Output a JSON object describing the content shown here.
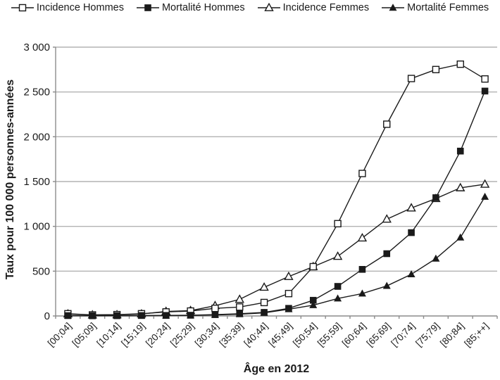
{
  "chart_data": {
    "type": "line",
    "title": "",
    "xlabel": "Âge en 2012",
    "ylabel": "Taux pour 100 000 personnes-années",
    "categories": [
      "[00;04]",
      "[05;09]",
      "[10;14]",
      "[15;19]",
      "[20;24]",
      "[25;29]",
      "[30;34]",
      "[35;39]",
      "[40;44]",
      "[45;49]",
      "[50;54]",
      "[55;59]",
      "[60;64]",
      "[65;69]",
      "[70;74]",
      "[75;79]",
      "[80;84]",
      "[85;++]"
    ],
    "series": [
      {
        "id": "incidence-hommes",
        "name": "Incidence Hommes",
        "marker": "square-open",
        "values": [
          25,
          12,
          15,
          25,
          45,
          55,
          85,
          100,
          150,
          250,
          550,
          1030,
          1590,
          2140,
          2650,
          2750,
          2810,
          2645
        ]
      },
      {
        "id": "mortalite-hommes",
        "name": "Mortalité Hommes",
        "marker": "square-filled",
        "values": [
          4,
          2,
          3,
          5,
          6,
          8,
          15,
          25,
          40,
          85,
          175,
          330,
          520,
          695,
          930,
          1320,
          1840,
          2510
        ]
      },
      {
        "id": "incidence-femmes",
        "name": "Incidence Femmes",
        "marker": "triangle-open",
        "values": [
          22,
          11,
          13,
          22,
          50,
          60,
          115,
          185,
          320,
          440,
          550,
          665,
          870,
          1080,
          1205,
          1310,
          1430,
          1470
        ]
      },
      {
        "id": "mortalite-femmes",
        "name": "Mortalité Femmes",
        "marker": "triangle-filled",
        "values": [
          3,
          2,
          2,
          4,
          5,
          6,
          12,
          20,
          35,
          75,
          120,
          195,
          250,
          335,
          465,
          640,
          875,
          1330
        ]
      }
    ],
    "ylim": [
      0,
      3000
    ],
    "ytick_step": 500,
    "ytick_labels": [
      "0",
      "500",
      "1 000",
      "1 500",
      "2 000",
      "2 500",
      "3 000"
    ],
    "grid": "horizontal",
    "legend_position": "top",
    "colors": {
      "series": "#1a1a1a",
      "marker_fill_open": "#ffffff",
      "grid": "#b3b3b3",
      "axis": "#8c8c8c",
      "text": "#1a1a1a"
    }
  }
}
